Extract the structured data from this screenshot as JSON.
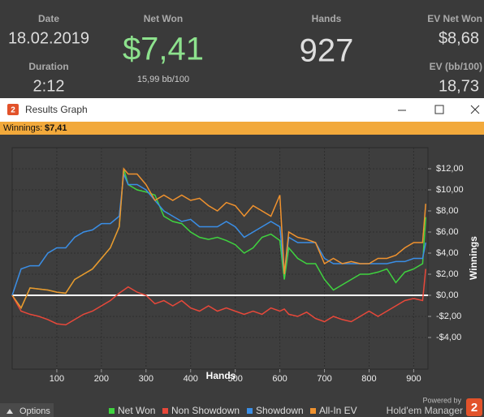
{
  "header": {
    "date_label": "Date",
    "date": "18.02.2019",
    "duration_label": "Duration",
    "duration": "2:12",
    "net_won_label": "Net Won",
    "net_won": "$7,41",
    "bb100": "15,99 bb/100",
    "hands_label": "Hands",
    "hands": "927",
    "ev_net_won_label": "EV Net Won",
    "ev_net_won": "$8,68",
    "ev_bb100_label": "EV (bb/100)",
    "ev_bb100": "18,73"
  },
  "window": {
    "icon": "2",
    "title": "Results Graph",
    "status_label": "Winnings:",
    "status_value": "$7,41",
    "options": "Options",
    "powered_by": "Powered by",
    "brand": "Hold'em Manager",
    "brand_icon": "2"
  },
  "chart_data": {
    "type": "line",
    "x_label": "Hands",
    "y_label": "Winnings",
    "grid": true,
    "x": [
      0,
      20,
      40,
      60,
      80,
      100,
      120,
      140,
      160,
      180,
      200,
      220,
      240,
      250,
      260,
      280,
      300,
      320,
      340,
      360,
      380,
      400,
      420,
      440,
      460,
      480,
      500,
      520,
      540,
      560,
      580,
      600,
      610,
      620,
      640,
      660,
      680,
      700,
      720,
      740,
      760,
      780,
      800,
      820,
      840,
      860,
      880,
      900,
      920,
      927
    ],
    "xlim": [
      0,
      932
    ],
    "xticks": [
      100,
      200,
      300,
      400,
      500,
      600,
      700,
      800,
      900
    ],
    "ylim": [
      -7,
      14
    ],
    "yticks": [
      {
        "value": -4,
        "label": "-$4,00"
      },
      {
        "value": -2,
        "label": "-$2,00"
      },
      {
        "value": 0,
        "label": "$0,00"
      },
      {
        "value": 2,
        "label": "$2,00"
      },
      {
        "value": 4,
        "label": "$4,00"
      },
      {
        "value": 6,
        "label": "$6,00"
      },
      {
        "value": 8,
        "label": "$8,00"
      },
      {
        "value": 10,
        "label": "$10,00"
      },
      {
        "value": 12,
        "label": "$12,00"
      }
    ],
    "series": [
      {
        "name": "Net Won",
        "color": "#3fd33f",
        "values": [
          0,
          -1.2,
          0.7,
          0.6,
          0.5,
          0.3,
          0.2,
          1.5,
          2.0,
          2.5,
          3.5,
          4.5,
          6.5,
          12,
          10.5,
          10,
          9.8,
          9.5,
          7.5,
          7.0,
          6.8,
          6.0,
          5.5,
          5.3,
          5.5,
          5.2,
          4.8,
          4.0,
          4.5,
          5.5,
          5.8,
          5.2,
          1.5,
          4.5,
          3.5,
          3.0,
          3.0,
          1.5,
          0.5,
          1.0,
          1.5,
          2.0,
          2.0,
          2.2,
          2.5,
          1.2,
          2.2,
          2.5,
          3.0,
          7.41
        ]
      },
      {
        "name": "Non Showdown",
        "color": "#e8483a",
        "values": [
          0,
          -1.5,
          -1.8,
          -2.0,
          -2.3,
          -2.7,
          -2.8,
          -2.3,
          -1.8,
          -1.5,
          -1.0,
          -0.5,
          0.2,
          0.5,
          0.8,
          0.3,
          0.0,
          -0.8,
          -0.5,
          -1.0,
          -0.5,
          -1.2,
          -1.5,
          -1.0,
          -1.5,
          -1.2,
          -1.5,
          -1.8,
          -1.5,
          -1.8,
          -1.2,
          -1.5,
          -1.3,
          -1.8,
          -2.0,
          -1.6,
          -2.2,
          -2.5,
          -2.0,
          -2.3,
          -2.5,
          -2.0,
          -1.5,
          -2.0,
          -1.5,
          -1.0,
          -0.5,
          -0.3,
          -0.5,
          2.5
        ]
      },
      {
        "name": "Showdown",
        "color": "#3a8ee6",
        "values": [
          0,
          2.5,
          2.8,
          2.8,
          4.0,
          4.5,
          4.5,
          5.5,
          6.0,
          6.2,
          6.8,
          6.8,
          7.5,
          11.5,
          10.5,
          10.5,
          10.0,
          9.0,
          8.0,
          7.5,
          7.0,
          7.2,
          6.5,
          6.5,
          6.5,
          7.0,
          6.5,
          5.5,
          6.0,
          6.5,
          7.0,
          6.5,
          2.0,
          5.5,
          5.0,
          5.0,
          5.0,
          3.5,
          3.0,
          3.0,
          3.0,
          3.0,
          3.0,
          3.0,
          3.0,
          3.2,
          3.2,
          3.5,
          3.5,
          5.0
        ]
      },
      {
        "name": "All-In EV",
        "color": "#f0922e",
        "values": [
          0,
          -1.2,
          0.7,
          0.6,
          0.5,
          0.3,
          0.2,
          1.5,
          2.0,
          2.5,
          3.5,
          4.5,
          6.5,
          12,
          11.5,
          11.5,
          10.5,
          9.0,
          9.5,
          9.0,
          9.5,
          9.0,
          9.2,
          8.5,
          8.0,
          8.8,
          8.5,
          7.5,
          8.5,
          8.0,
          7.5,
          9.5,
          2.0,
          6.0,
          5.5,
          5.3,
          5.0,
          3.0,
          3.5,
          3.0,
          3.2,
          3.0,
          3.0,
          3.5,
          3.5,
          3.8,
          4.5,
          5.0,
          5.0,
          8.68
        ]
      }
    ]
  }
}
